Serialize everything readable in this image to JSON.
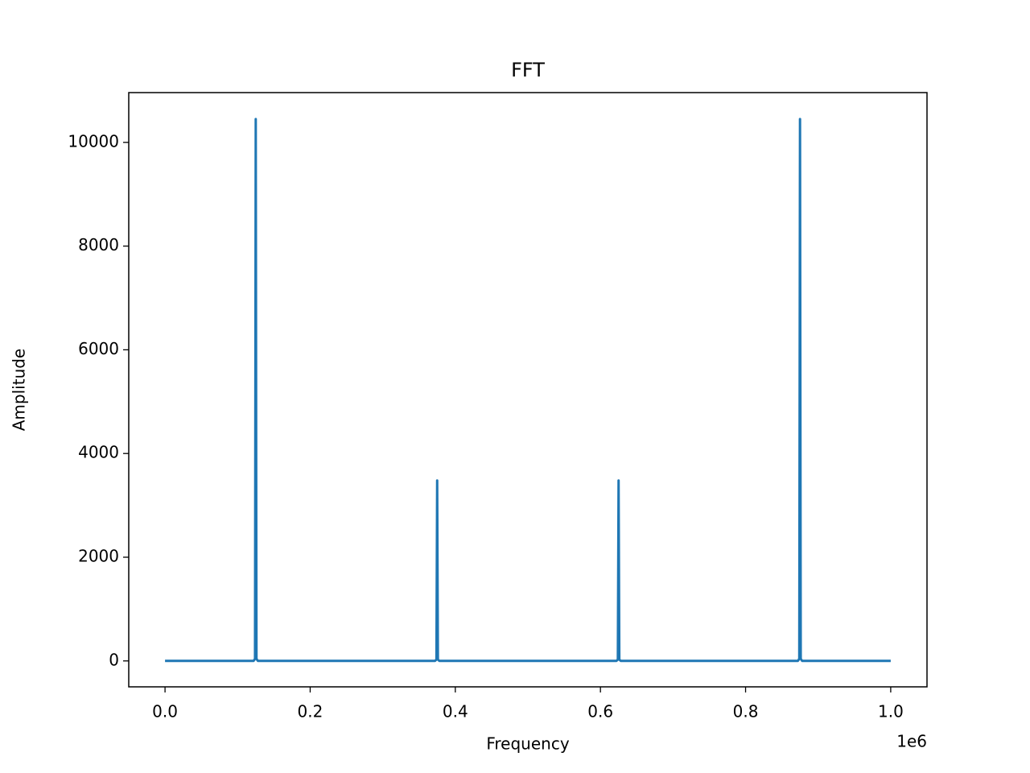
{
  "chart_data": {
    "type": "line",
    "title": "FFT",
    "x_label": "Frequency",
    "y_label": "Amplitude",
    "x_offset_label": "1e6",
    "x": [
      0,
      122000,
      124000,
      125000,
      126000,
      128000,
      372000,
      374000,
      375000,
      376000,
      378000,
      622000,
      624000,
      625000,
      626000,
      628000,
      872000,
      874000,
      875000,
      876000,
      878000,
      1000000
    ],
    "series": [
      {
        "name": "Amplitude",
        "color": "#1f77b4",
        "values": [
          0,
          0,
          40,
          10450,
          40,
          0,
          0,
          25,
          3480,
          25,
          0,
          0,
          25,
          3480,
          25,
          0,
          0,
          40,
          10450,
          40,
          0,
          0
        ]
      }
    ],
    "xlim": [
      -50000,
      1050000
    ],
    "ylim": [
      -500,
      10960
    ],
    "xticks": [
      {
        "value": 0,
        "label": "0.0"
      },
      {
        "value": 200000,
        "label": "0.2"
      },
      {
        "value": 400000,
        "label": "0.4"
      },
      {
        "value": 600000,
        "label": "0.6"
      },
      {
        "value": 800000,
        "label": "0.8"
      },
      {
        "value": 1000000,
        "label": "1.0"
      }
    ],
    "yticks": [
      0,
      2000,
      4000,
      6000,
      8000,
      10000
    ],
    "grid": false
  }
}
